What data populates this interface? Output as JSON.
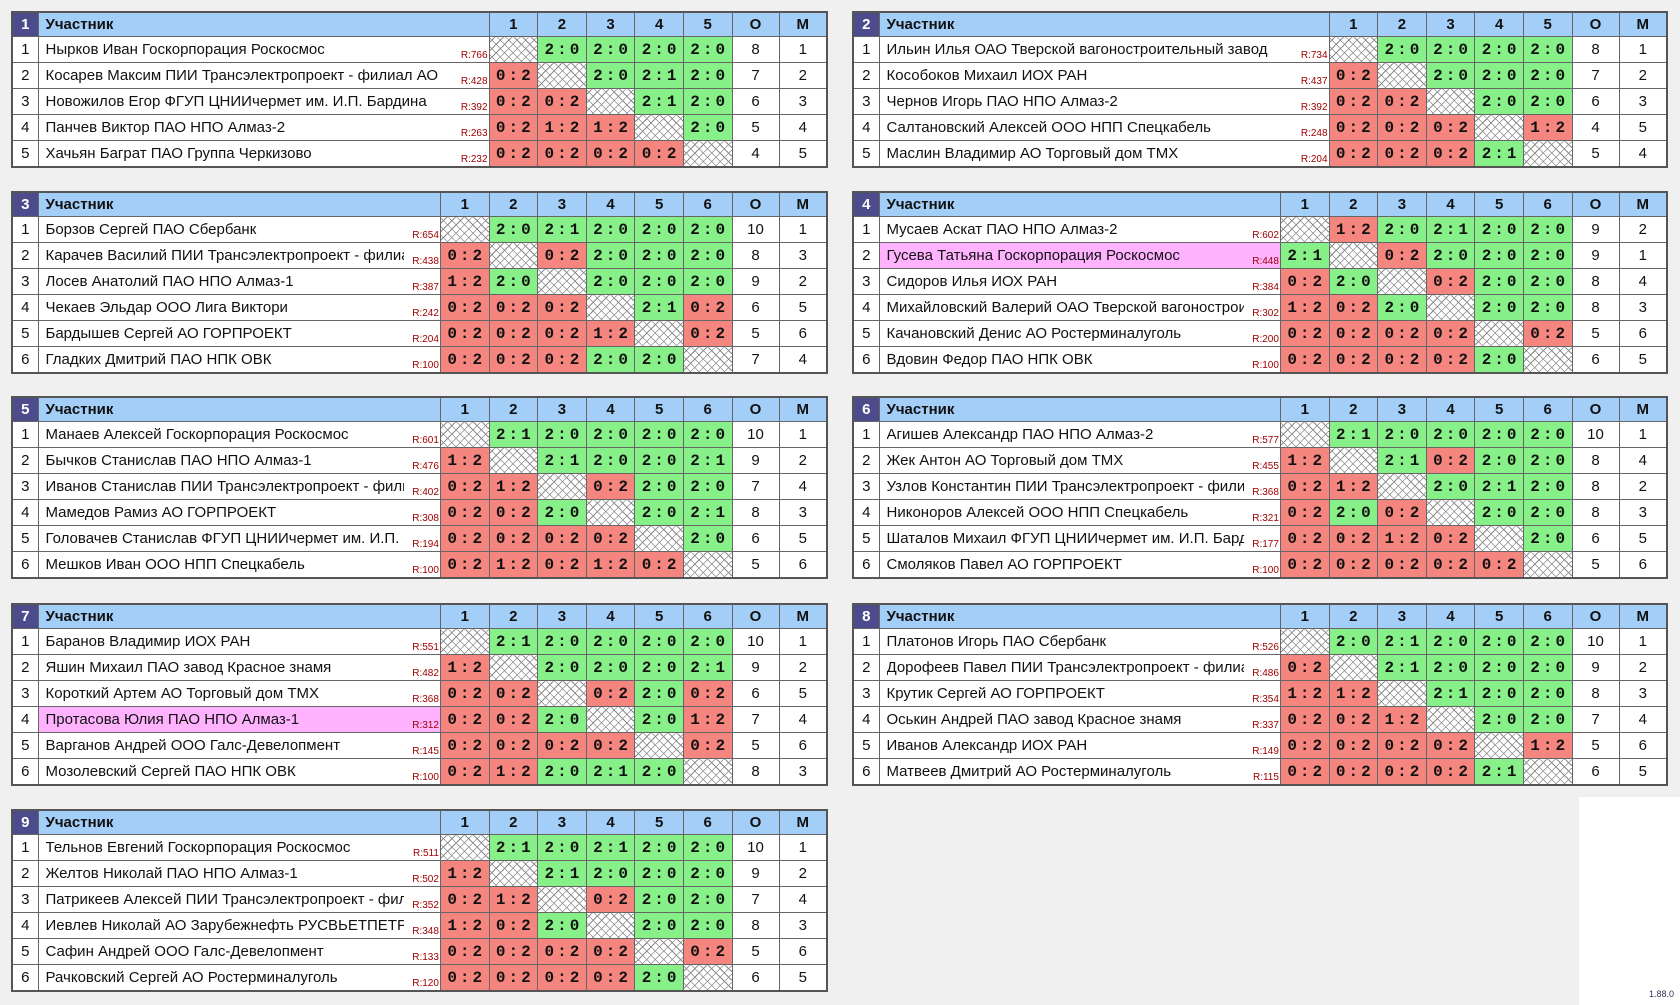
{
  "headers": {
    "participant": "Участник",
    "points": "О",
    "place": "М"
  },
  "colors": {
    "header": "#a3cef8",
    "group_number": "#4c4c8c",
    "win": "#88f088",
    "loss": "#f4857f",
    "highlight": "#ffb3ff",
    "rating": "#a00000"
  },
  "version": "1.88.0",
  "groups": [
    {
      "number": "1",
      "players": [
        {
          "name": "Нырков Иван Госкорпорация Роскосмос",
          "rating": "R:766",
          "scores": [
            null,
            "2:0",
            "2:0",
            "2:0",
            "2:0"
          ],
          "points": "8",
          "place": "1"
        },
        {
          "name": "Косарев Максим ПИИ Трансэлектропроект - филиал АО",
          "rating": "R:428",
          "scores": [
            "0:2",
            null,
            "2:0",
            "2:1",
            "2:0"
          ],
          "points": "7",
          "place": "2"
        },
        {
          "name": "Новожилов Егор ФГУП ЦНИИчермет им. И.П. Бардина",
          "rating": "R:392",
          "scores": [
            "0:2",
            "0:2",
            null,
            "2:1",
            "2:0"
          ],
          "points": "6",
          "place": "3"
        },
        {
          "name": "Панчев Виктор ПАО НПО Алмаз-2",
          "rating": "R:263",
          "scores": [
            "0:2",
            "1:2",
            "1:2",
            null,
            "2:0"
          ],
          "points": "5",
          "place": "4"
        },
        {
          "name": "Хачьян Баграт ПАО Группа Черкизово",
          "rating": "R:232",
          "scores": [
            "0:2",
            "0:2",
            "0:2",
            "0:2",
            null
          ],
          "points": "4",
          "place": "5"
        }
      ]
    },
    {
      "number": "2",
      "players": [
        {
          "name": "Ильин Илья ОАО Тверской вагоностроительный завод",
          "rating": "R:734",
          "scores": [
            null,
            "2:0",
            "2:0",
            "2:0",
            "2:0"
          ],
          "points": "8",
          "place": "1"
        },
        {
          "name": "Кособоков Михаил ИОХ РАН",
          "rating": "R:437",
          "scores": [
            "0:2",
            null,
            "2:0",
            "2:0",
            "2:0"
          ],
          "points": "7",
          "place": "2"
        },
        {
          "name": "Чернов Игорь ПАО НПО Алмаз-2",
          "rating": "R:392",
          "scores": [
            "0:2",
            "0:2",
            null,
            "2:0",
            "2:0"
          ],
          "points": "6",
          "place": "3"
        },
        {
          "name": "Салтановский Алексей ООО НПП Спецкабель",
          "rating": "R:248",
          "scores": [
            "0:2",
            "0:2",
            "0:2",
            null,
            "1:2"
          ],
          "points": "4",
          "place": "5"
        },
        {
          "name": "Маслин Владимир АО Торговый дом ТМХ",
          "rating": "R:204",
          "scores": [
            "0:2",
            "0:2",
            "0:2",
            "2:1",
            null
          ],
          "points": "5",
          "place": "4"
        }
      ]
    },
    {
      "number": "3",
      "players": [
        {
          "name": "Борзов Сергей ПАО Сбербанк",
          "rating": "R:654",
          "scores": [
            null,
            "2:0",
            "2:1",
            "2:0",
            "2:0",
            "2:0"
          ],
          "points": "10",
          "place": "1"
        },
        {
          "name": "Карачев Василий ПИИ Трансэлектропроект - филиал",
          "rating": "R:438",
          "scores": [
            "0:2",
            null,
            "0:2",
            "2:0",
            "2:0",
            "2:0"
          ],
          "points": "8",
          "place": "3"
        },
        {
          "name": "Лосев Анатолий ПАО НПО Алмаз-1",
          "rating": "R:387",
          "scores": [
            "1:2",
            "2:0",
            null,
            "2:0",
            "2:0",
            "2:0"
          ],
          "points": "9",
          "place": "2"
        },
        {
          "name": "Чекаев Эльдар ООО Лига Виктори",
          "rating": "R:242",
          "scores": [
            "0:2",
            "0:2",
            "0:2",
            null,
            "2:1",
            "0:2"
          ],
          "points": "6",
          "place": "5"
        },
        {
          "name": "Бардышев Сергей АО ГОРПРОЕКТ",
          "rating": "R:204",
          "scores": [
            "0:2",
            "0:2",
            "0:2",
            "1:2",
            null,
            "0:2"
          ],
          "points": "5",
          "place": "6"
        },
        {
          "name": "Гладких Дмитрий ПАО НПК ОВК",
          "rating": "R:100",
          "scores": [
            "0:2",
            "0:2",
            "0:2",
            "2:0",
            "2:0",
            null
          ],
          "points": "7",
          "place": "4"
        }
      ]
    },
    {
      "number": "4",
      "players": [
        {
          "name": "Мусаев Аскат ПАО НПО Алмаз-2",
          "rating": "R:602",
          "scores": [
            null,
            "1:2",
            "2:0",
            "2:1",
            "2:0",
            "2:0"
          ],
          "points": "9",
          "place": "2"
        },
        {
          "name": "Гусева Татьяна Госкорпорация Роскосмос",
          "rating": "R:448",
          "highlight": true,
          "scores": [
            "2:1",
            null,
            "0:2",
            "2:0",
            "2:0",
            "2:0"
          ],
          "points": "9",
          "place": "1"
        },
        {
          "name": "Сидоров Илья ИОХ РАН",
          "rating": "R:384",
          "scores": [
            "0:2",
            "2:0",
            null,
            "0:2",
            "2:0",
            "2:0"
          ],
          "points": "8",
          "place": "4"
        },
        {
          "name": "Михайловский Валерий ОАО Тверской вагоностроительный завод",
          "rating": "R:302",
          "scores": [
            "1:2",
            "0:2",
            "2:0",
            null,
            "2:0",
            "2:0"
          ],
          "points": "8",
          "place": "3"
        },
        {
          "name": "Качановский Денис АО Ростерминалуголь",
          "rating": "R:200",
          "scores": [
            "0:2",
            "0:2",
            "0:2",
            "0:2",
            null,
            "0:2"
          ],
          "points": "5",
          "place": "6"
        },
        {
          "name": "Вдовин Федор ПАО НПК ОВК",
          "rating": "R:100",
          "scores": [
            "0:2",
            "0:2",
            "0:2",
            "0:2",
            "2:0",
            null
          ],
          "points": "6",
          "place": "5"
        }
      ]
    },
    {
      "number": "5",
      "players": [
        {
          "name": "Манаев Алексей Госкорпорация Роскосмос",
          "rating": "R:601",
          "scores": [
            null,
            "2:1",
            "2:0",
            "2:0",
            "2:0",
            "2:0"
          ],
          "points": "10",
          "place": "1"
        },
        {
          "name": "Бычков Станислав ПАО НПО Алмаз-1",
          "rating": "R:476",
          "scores": [
            "1:2",
            null,
            "2:1",
            "2:0",
            "2:0",
            "2:1"
          ],
          "points": "9",
          "place": "2"
        },
        {
          "name": "Иванов Станислав ПИИ Трансэлектропроект - филиал",
          "rating": "R:402",
          "scores": [
            "0:2",
            "1:2",
            null,
            "0:2",
            "2:0",
            "2:0"
          ],
          "points": "7",
          "place": "4"
        },
        {
          "name": "Мамедов Рамиз АО ГОРПРОЕКТ",
          "rating": "R:308",
          "scores": [
            "0:2",
            "0:2",
            "2:0",
            null,
            "2:0",
            "2:1"
          ],
          "points": "8",
          "place": "3"
        },
        {
          "name": "Головачев Станислав ФГУП ЦНИИчермет им. И.П. Бардина",
          "rating": "R:194",
          "scores": [
            "0:2",
            "0:2",
            "0:2",
            "0:2",
            null,
            "2:0"
          ],
          "points": "6",
          "place": "5"
        },
        {
          "name": "Мешков Иван ООО НПП Спецкабель",
          "rating": "R:100",
          "scores": [
            "0:2",
            "1:2",
            "0:2",
            "1:2",
            "0:2",
            null
          ],
          "points": "5",
          "place": "6"
        }
      ]
    },
    {
      "number": "6",
      "players": [
        {
          "name": "Агишев Александр ПАО НПО Алмаз-2",
          "rating": "R:577",
          "scores": [
            null,
            "2:1",
            "2:0",
            "2:0",
            "2:0",
            "2:0"
          ],
          "points": "10",
          "place": "1"
        },
        {
          "name": "Жек Антон АО Торговый дом ТМХ",
          "rating": "R:455",
          "scores": [
            "1:2",
            null,
            "2:1",
            "0:2",
            "2:0",
            "2:0"
          ],
          "points": "8",
          "place": "4"
        },
        {
          "name": "Узлов Константин ПИИ Трансэлектропроект - филиал",
          "rating": "R:368",
          "scores": [
            "0:2",
            "1:2",
            null,
            "2:0",
            "2:1",
            "2:0"
          ],
          "points": "8",
          "place": "2"
        },
        {
          "name": "Никоноров Алексей ООО НПП Спецкабель",
          "rating": "R:321",
          "scores": [
            "0:2",
            "2:0",
            "0:2",
            null,
            "2:0",
            "2:0"
          ],
          "points": "8",
          "place": "3"
        },
        {
          "name": "Шаталов Михаил ФГУП ЦНИИчермет им. И.П. Бардина",
          "rating": "R:177",
          "scores": [
            "0:2",
            "0:2",
            "1:2",
            "0:2",
            null,
            "2:0"
          ],
          "points": "6",
          "place": "5"
        },
        {
          "name": "Смоляков Павел АО ГОРПРОЕКТ",
          "rating": "R:100",
          "scores": [
            "0:2",
            "0:2",
            "0:2",
            "0:2",
            "0:2",
            null
          ],
          "points": "5",
          "place": "6"
        }
      ]
    },
    {
      "number": "7",
      "players": [
        {
          "name": "Баранов Владимир ИОХ РАН",
          "rating": "R:551",
          "scores": [
            null,
            "2:1",
            "2:0",
            "2:0",
            "2:0",
            "2:0"
          ],
          "points": "10",
          "place": "1"
        },
        {
          "name": "Яшин Михаил ПАО завод Красное знамя",
          "rating": "R:482",
          "scores": [
            "1:2",
            null,
            "2:0",
            "2:0",
            "2:0",
            "2:1"
          ],
          "points": "9",
          "place": "2"
        },
        {
          "name": "Короткий Артем АО Торговый дом ТМХ",
          "rating": "R:368",
          "scores": [
            "0:2",
            "0:2",
            null,
            "0:2",
            "2:0",
            "0:2"
          ],
          "points": "6",
          "place": "5"
        },
        {
          "name": "Протасова Юлия ПАО НПО Алмаз-1",
          "rating": "R:312",
          "highlight": true,
          "scores": [
            "0:2",
            "0:2",
            "2:0",
            null,
            "2:0",
            "1:2"
          ],
          "points": "7",
          "place": "4"
        },
        {
          "name": "Варганов Андрей ООО Галс-Девелопмент",
          "rating": "R:145",
          "scores": [
            "0:2",
            "0:2",
            "0:2",
            "0:2",
            null,
            "0:2"
          ],
          "points": "5",
          "place": "6"
        },
        {
          "name": "Мозолевский Сергей ПАО НПК ОВК",
          "rating": "R:100",
          "scores": [
            "0:2",
            "1:2",
            "2:0",
            "2:1",
            "2:0",
            null
          ],
          "points": "8",
          "place": "3"
        }
      ]
    },
    {
      "number": "8",
      "players": [
        {
          "name": "Платонов Игорь ПАО Сбербанк",
          "rating": "R:526",
          "scores": [
            null,
            "2:0",
            "2:1",
            "2:0",
            "2:0",
            "2:0"
          ],
          "points": "10",
          "place": "1"
        },
        {
          "name": "Дорофеев Павел ПИИ Трансэлектропроект - филиал",
          "rating": "R:486",
          "scores": [
            "0:2",
            null,
            "2:1",
            "2:0",
            "2:0",
            "2:0"
          ],
          "points": "9",
          "place": "2"
        },
        {
          "name": "Крутик Сергей АО ГОРПРОЕКТ",
          "rating": "R:354",
          "scores": [
            "1:2",
            "1:2",
            null,
            "2:1",
            "2:0",
            "2:0"
          ],
          "points": "8",
          "place": "3"
        },
        {
          "name": "Оськин Андрей ПАО завод Красное знамя",
          "rating": "R:337",
          "scores": [
            "0:2",
            "0:2",
            "1:2",
            null,
            "2:0",
            "2:0"
          ],
          "points": "7",
          "place": "4"
        },
        {
          "name": "Иванов Александр ИОХ РАН",
          "rating": "R:149",
          "scores": [
            "0:2",
            "0:2",
            "0:2",
            "0:2",
            null,
            "1:2"
          ],
          "points": "5",
          "place": "6"
        },
        {
          "name": "Матвеев Дмитрий АО Ростерминалуголь",
          "rating": "R:115",
          "scores": [
            "0:2",
            "0:2",
            "0:2",
            "0:2",
            "2:1",
            null
          ],
          "points": "6",
          "place": "5"
        }
      ]
    },
    {
      "number": "9",
      "players": [
        {
          "name": "Тельнов Евгений Госкорпорация Роскосмос",
          "rating": "R:511",
          "scores": [
            null,
            "2:1",
            "2:0",
            "2:1",
            "2:0",
            "2:0"
          ],
          "points": "10",
          "place": "1"
        },
        {
          "name": "Желтов Николай ПАО НПО Алмаз-1",
          "rating": "R:502",
          "scores": [
            "1:2",
            null,
            "2:1",
            "2:0",
            "2:0",
            "2:0"
          ],
          "points": "9",
          "place": "2"
        },
        {
          "name": "Патрикеев Алексей ПИИ Трансэлектропроект - филиал",
          "rating": "R:352",
          "scores": [
            "0:2",
            "1:2",
            null,
            "0:2",
            "2:0",
            "2:0"
          ],
          "points": "7",
          "place": "4"
        },
        {
          "name": "Иевлев Николай АО Зарубежнефть РУСВЬЕТПЕТРО",
          "rating": "R:348",
          "scores": [
            "1:2",
            "0:2",
            "2:0",
            null,
            "2:0",
            "2:0"
          ],
          "points": "8",
          "place": "3"
        },
        {
          "name": "Сафин Андрей ООО Галс-Девелопмент",
          "rating": "R:133",
          "scores": [
            "0:2",
            "0:2",
            "0:2",
            "0:2",
            null,
            "0:2"
          ],
          "points": "5",
          "place": "6"
        },
        {
          "name": "Рачковский Сергей АО Ростерминалуголь",
          "rating": "R:120",
          "scores": [
            "0:2",
            "0:2",
            "0:2",
            "0:2",
            "2:0",
            null
          ],
          "points": "6",
          "place": "5"
        }
      ]
    }
  ]
}
